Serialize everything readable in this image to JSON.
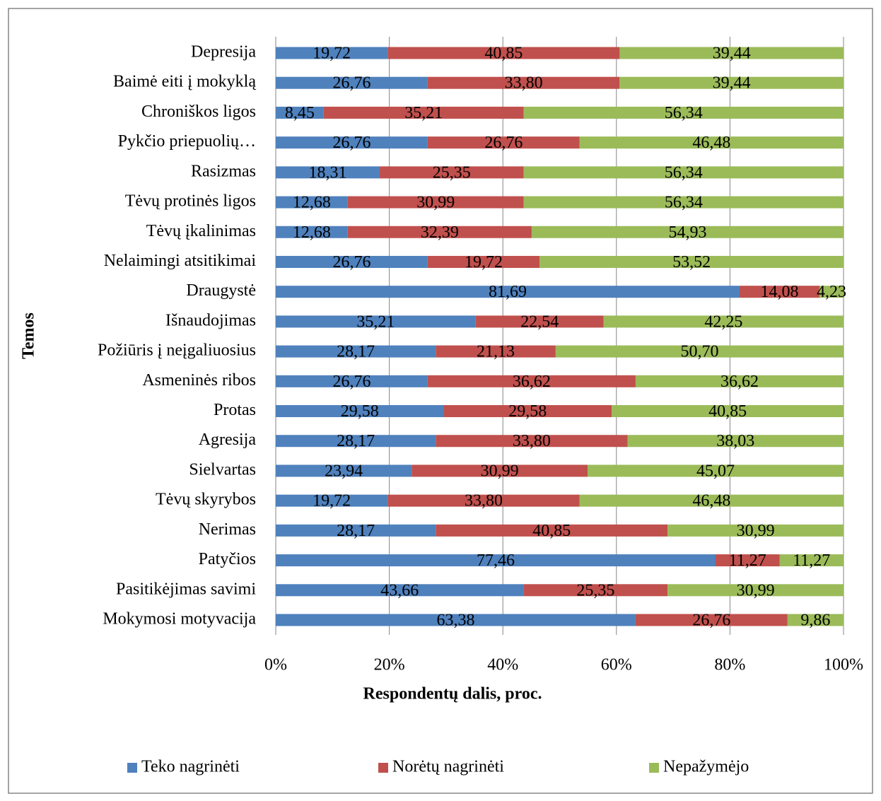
{
  "chart_data": {
    "type": "stacked_bar_horizontal",
    "categories": [
      "Depresija",
      "Baimė eiti į mokyklą",
      "Chroniškos ligos",
      "Pykčio priepuolių…",
      "Rasizmas",
      "Tėvų protinės ligos",
      "Tėvų įkalinimas",
      "Nelaimingi atsitikimai",
      "Draugystė",
      "Išnaudojimas",
      "Požiūris į neįgaliuosius",
      "Asmeninės ribos",
      "Protas",
      "Agresija",
      "Sielvartas",
      "Tėvų skyrybos",
      "Nerimas",
      "Patyčios",
      "Pasitikėjimas savimi",
      "Mokymosi motyvacija"
    ],
    "series": [
      {
        "name": "Teko nagrinėti",
        "color": "#4f81bd",
        "values": [
          19.72,
          26.76,
          8.45,
          26.76,
          18.31,
          12.68,
          12.68,
          26.76,
          81.69,
          35.21,
          28.17,
          26.76,
          29.58,
          28.17,
          23.94,
          19.72,
          28.17,
          77.46,
          43.66,
          63.38
        ],
        "value_labels": [
          "19,72",
          "26,76",
          "8,45",
          "26,76",
          "18,31",
          "12,68",
          "12,68",
          "26,76",
          "81,69",
          "35,21",
          "28,17",
          "26,76",
          "29,58",
          "28,17",
          "23,94",
          "19,72",
          "28,17",
          "77,46",
          "43,66",
          "63,38"
        ]
      },
      {
        "name": "Norėtų nagrinėti",
        "color": "#c0504d",
        "values": [
          40.85,
          33.8,
          35.21,
          26.76,
          25.35,
          30.99,
          32.39,
          19.72,
          14.08,
          22.54,
          21.13,
          36.62,
          29.58,
          33.8,
          30.99,
          33.8,
          40.85,
          11.27,
          25.35,
          26.76
        ],
        "value_labels": [
          "40,85",
          "33,80",
          "35,21",
          "26,76",
          "25,35",
          "30,99",
          "32,39",
          "19,72",
          "14,08",
          "22,54",
          "21,13",
          "36,62",
          "29,58",
          "33,80",
          "30,99",
          "33,80",
          "40,85",
          "11,27",
          "25,35",
          "26,76"
        ]
      },
      {
        "name": "Nepažymėjo",
        "color": "#9bbb59",
        "values": [
          39.44,
          39.44,
          56.34,
          46.48,
          56.34,
          56.34,
          54.93,
          53.52,
          4.23,
          42.25,
          50.7,
          36.62,
          40.85,
          38.03,
          45.07,
          46.48,
          30.99,
          11.27,
          30.99,
          9.86
        ],
        "value_labels": [
          "39,44",
          "39,44",
          "56,34",
          "46,48",
          "56,34",
          "56,34",
          "54,93",
          "53,52",
          "4,23",
          "42,25",
          "50,70",
          "36,62",
          "40,85",
          "38,03",
          "45,07",
          "46,48",
          "30,99",
          "11,27",
          "30,99",
          "9,86"
        ]
      }
    ],
    "xlabel": "Respondentų dalis, proc.",
    "ylabel": "Temos",
    "xlim": [
      0,
      100
    ],
    "xticks": [
      {
        "value": 0,
        "label": "0%"
      },
      {
        "value": 20,
        "label": "20%"
      },
      {
        "value": 40,
        "label": "40%"
      },
      {
        "value": 60,
        "label": "60%"
      },
      {
        "value": 80,
        "label": "80%"
      },
      {
        "value": 100,
        "label": "100%"
      }
    ],
    "grid": true,
    "legend": "bottom"
  }
}
